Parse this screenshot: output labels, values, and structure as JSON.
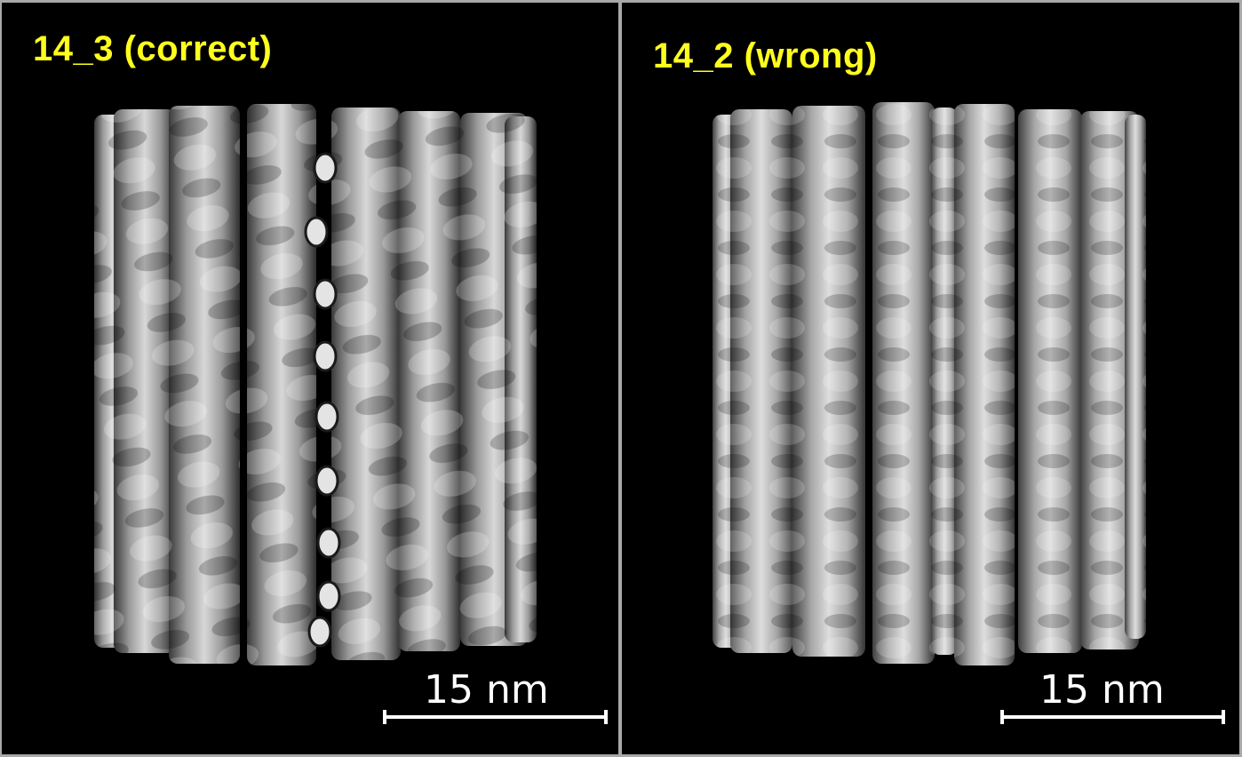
{
  "panels": [
    {
      "label": "14_3 (correct)",
      "scale_label": "15 nm",
      "label_color": "#ffff1e"
    },
    {
      "label": "14_2 (wrong)",
      "scale_label": "15 nm",
      "label_color": "#ffff1e"
    }
  ]
}
